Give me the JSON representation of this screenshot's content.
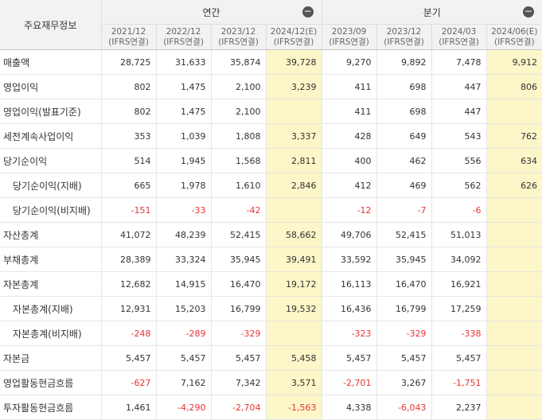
{
  "corner_label": "주요재무정보",
  "groups": {
    "annual": "연간",
    "quarterly": "분기",
    "collapse_icon": "−"
  },
  "columns": [
    {
      "period": "2021/12",
      "basis": "(IFRS연결)"
    },
    {
      "period": "2022/12",
      "basis": "(IFRS연결)"
    },
    {
      "period": "2023/12",
      "basis": "(IFRS연결)"
    },
    {
      "period": "2024/12(E)",
      "basis": "(IFRS연결)"
    },
    {
      "period": "2023/09",
      "basis": "(IFRS연결)"
    },
    {
      "period": "2023/12",
      "basis": "(IFRS연결)"
    },
    {
      "period": "2024/03",
      "basis": "(IFRS연결)"
    },
    {
      "period": "2024/06(E)",
      "basis": "(IFRS연결)"
    }
  ],
  "estimate_columns": [
    3,
    7
  ],
  "rows": [
    {
      "label": "매출액",
      "sub": false,
      "values": [
        "28,725",
        "31,633",
        "35,874",
        "39,728",
        "9,270",
        "9,892",
        "7,478",
        "9,912"
      ]
    },
    {
      "label": "영업이익",
      "sub": false,
      "values": [
        "802",
        "1,475",
        "2,100",
        "3,239",
        "411",
        "698",
        "447",
        "806"
      ]
    },
    {
      "label": "영업이익(발표기준)",
      "sub": false,
      "values": [
        "802",
        "1,475",
        "2,100",
        "",
        "411",
        "698",
        "447",
        ""
      ]
    },
    {
      "label": "세전계속사업이익",
      "sub": false,
      "values": [
        "353",
        "1,039",
        "1,808",
        "3,337",
        "428",
        "649",
        "543",
        "762"
      ]
    },
    {
      "label": "당기순이익",
      "sub": false,
      "values": [
        "514",
        "1,945",
        "1,568",
        "2,811",
        "400",
        "462",
        "556",
        "634"
      ]
    },
    {
      "label": "당기순이익(지배)",
      "sub": true,
      "values": [
        "665",
        "1,978",
        "1,610",
        "2,846",
        "412",
        "469",
        "562",
        "626"
      ]
    },
    {
      "label": "당기순이익(비지배)",
      "sub": true,
      "values": [
        "-151",
        "-33",
        "-42",
        "",
        "-12",
        "-7",
        "-6",
        ""
      ]
    },
    {
      "label": "자산총계",
      "sub": false,
      "values": [
        "41,072",
        "48,239",
        "52,415",
        "58,662",
        "49,706",
        "52,415",
        "51,013",
        ""
      ]
    },
    {
      "label": "부채총계",
      "sub": false,
      "values": [
        "28,389",
        "33,324",
        "35,945",
        "39,491",
        "33,592",
        "35,945",
        "34,092",
        ""
      ]
    },
    {
      "label": "자본총계",
      "sub": false,
      "values": [
        "12,682",
        "14,915",
        "16,470",
        "19,172",
        "16,113",
        "16,470",
        "16,921",
        ""
      ]
    },
    {
      "label": "자본총계(지배)",
      "sub": true,
      "values": [
        "12,931",
        "15,203",
        "16,799",
        "19,532",
        "16,436",
        "16,799",
        "17,259",
        ""
      ]
    },
    {
      "label": "자본총계(비지배)",
      "sub": true,
      "values": [
        "-248",
        "-289",
        "-329",
        "",
        "-323",
        "-329",
        "-338",
        ""
      ]
    },
    {
      "label": "자본금",
      "sub": false,
      "values": [
        "5,457",
        "5,457",
        "5,457",
        "5,458",
        "5,457",
        "5,457",
        "5,457",
        ""
      ]
    },
    {
      "label": "영업활동현금흐름",
      "sub": false,
      "values": [
        "-627",
        "7,162",
        "7,342",
        "3,571",
        "-2,701",
        "3,267",
        "-1,751",
        ""
      ]
    },
    {
      "label": "투자활동현금흐름",
      "sub": false,
      "values": [
        "1,461",
        "-4,290",
        "-2,704",
        "-1,563",
        "4,338",
        "-6,043",
        "2,237",
        ""
      ]
    }
  ],
  "colors": {
    "estimate_bg": "#fcf6c8",
    "negative": "#e83535",
    "header_bg": "#f2f2f2"
  }
}
